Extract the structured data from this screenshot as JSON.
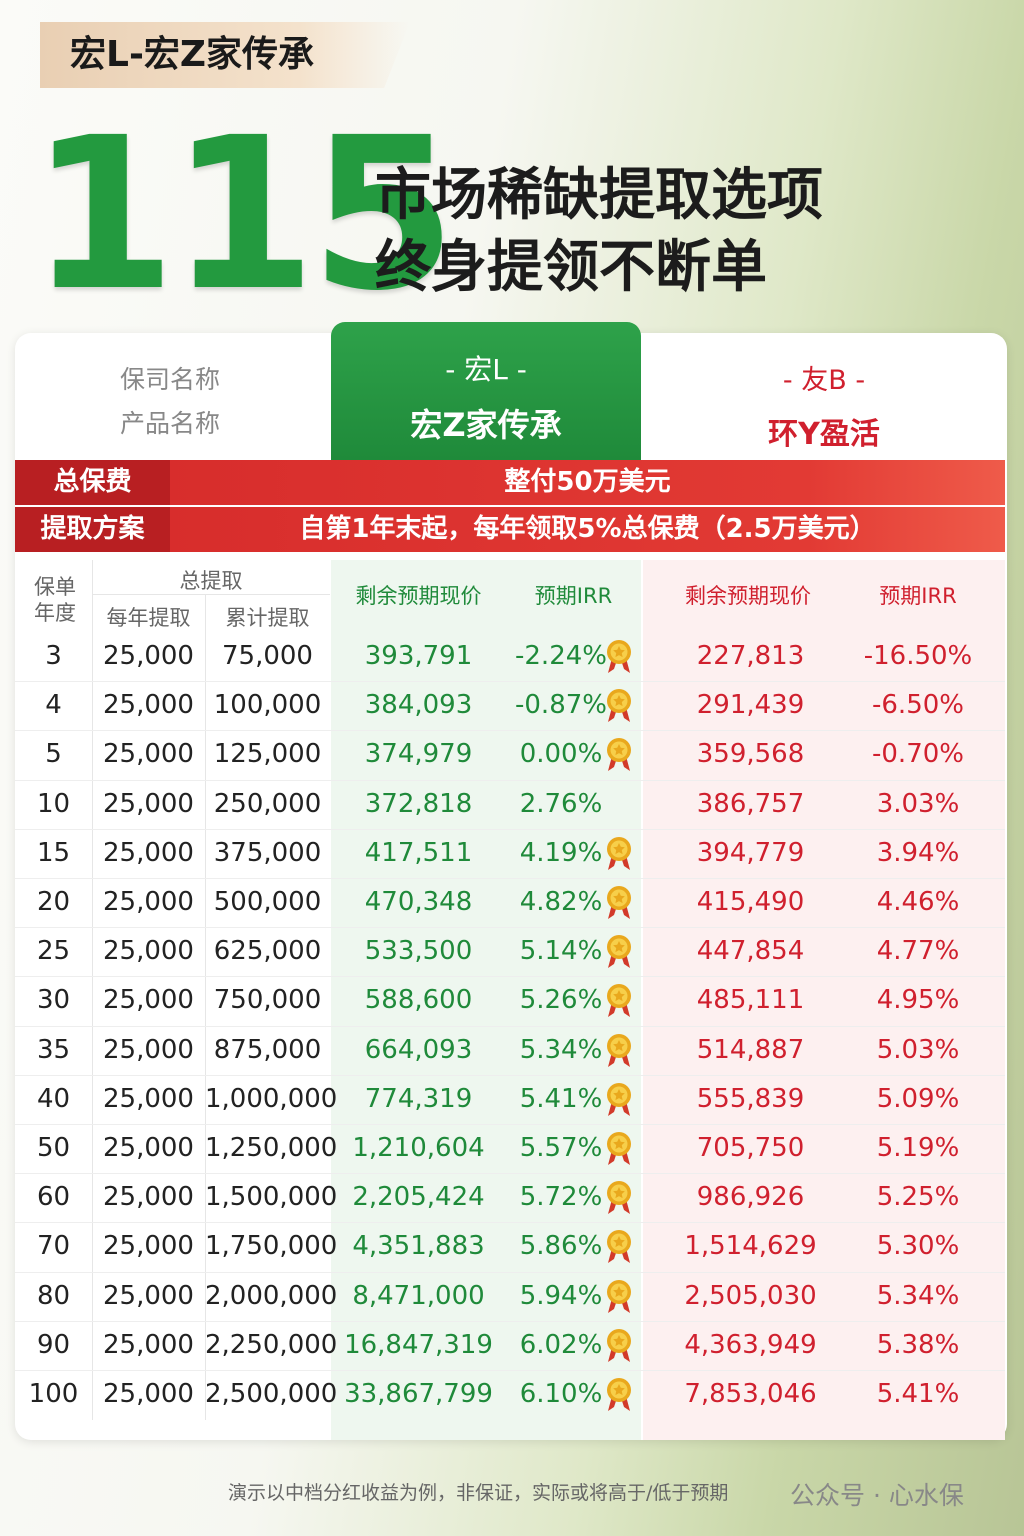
{
  "header": {
    "tag": "宏L-宏Z家传承",
    "number": "115",
    "lines": [
      "市场稀缺提取选项",
      "终身提领不断单"
    ]
  },
  "compare": {
    "labels": [
      "保司名称",
      "产品名称"
    ],
    "a": {
      "company": "- 宏L -",
      "product": "宏Z家传承"
    },
    "b": {
      "company": "- 友B -",
      "product": "环Y盈活"
    }
  },
  "banners": [
    {
      "label": "总保费",
      "text": "整付50万美元"
    },
    {
      "label": "提取方案",
      "text": "自第1年末起，每年领取5%总保费（2.5万美元）"
    }
  ],
  "table": {
    "year_header": [
      "保单",
      "年度"
    ],
    "withdraw_header": "总提取",
    "withdraw_sub": [
      "每年提取",
      "累计提取"
    ],
    "a_header": [
      "剩余预期现价",
      "预期IRR"
    ],
    "b_header": [
      "剩余预期现价",
      "预期IRR"
    ],
    "rows": [
      {
        "cells": [
          "3",
          "25,000",
          "75,000",
          "393,791",
          "-2.24%",
          "227,813",
          "-16.50%"
        ],
        "medal": true
      },
      {
        "cells": [
          "4",
          "25,000",
          "100,000",
          "384,093",
          "-0.87%",
          "291,439",
          "-6.50%"
        ],
        "medal": true
      },
      {
        "cells": [
          "5",
          "25,000",
          "125,000",
          "374,979",
          "0.00%",
          "359,568",
          "-0.70%"
        ],
        "medal": true
      },
      {
        "cells": [
          "10",
          "25,000",
          "250,000",
          "372,818",
          "2.76%",
          "386,757",
          "3.03%"
        ],
        "medal": false
      },
      {
        "cells": [
          "15",
          "25,000",
          "375,000",
          "417,511",
          "4.19%",
          "394,779",
          "3.94%"
        ],
        "medal": true
      },
      {
        "cells": [
          "20",
          "25,000",
          "500,000",
          "470,348",
          "4.82%",
          "415,490",
          "4.46%"
        ],
        "medal": true
      },
      {
        "cells": [
          "25",
          "25,000",
          "625,000",
          "533,500",
          "5.14%",
          "447,854",
          "4.77%"
        ],
        "medal": true
      },
      {
        "cells": [
          "30",
          "25,000",
          "750,000",
          "588,600",
          "5.26%",
          "485,111",
          "4.95%"
        ],
        "medal": true
      },
      {
        "cells": [
          "35",
          "25,000",
          "875,000",
          "664,093",
          "5.34%",
          "514,887",
          "5.03%"
        ],
        "medal": true
      },
      {
        "cells": [
          "40",
          "25,000",
          "1,000,000",
          "774,319",
          "5.41%",
          "555,839",
          "5.09%"
        ],
        "medal": true
      },
      {
        "cells": [
          "50",
          "25,000",
          "1,250,000",
          "1,210,604",
          "5.57%",
          "705,750",
          "5.19%"
        ],
        "medal": true
      },
      {
        "cells": [
          "60",
          "25,000",
          "1,500,000",
          "2,205,424",
          "5.72%",
          "986,926",
          "5.25%"
        ],
        "medal": true
      },
      {
        "cells": [
          "70",
          "25,000",
          "1,750,000",
          "4,351,883",
          "5.86%",
          "1,514,629",
          "5.30%"
        ],
        "medal": true
      },
      {
        "cells": [
          "80",
          "25,000",
          "2,000,000",
          "8,471,000",
          "5.94%",
          "2,505,030",
          "5.34%"
        ],
        "medal": true
      },
      {
        "cells": [
          "90",
          "25,000",
          "2,250,000",
          "16,847,319",
          "6.02%",
          "4,363,949",
          "5.38%"
        ],
        "medal": true
      },
      {
        "cells": [
          "100",
          "25,000",
          "2,500,000",
          "33,867,799",
          "6.10%",
          "7,853,046",
          "5.41%"
        ],
        "medal": true
      }
    ]
  },
  "footer": {
    "note": "演示以中档分红收益为例，非保证，实际或将高于/低于预期",
    "watermark": "公众号 · 心水保"
  }
}
